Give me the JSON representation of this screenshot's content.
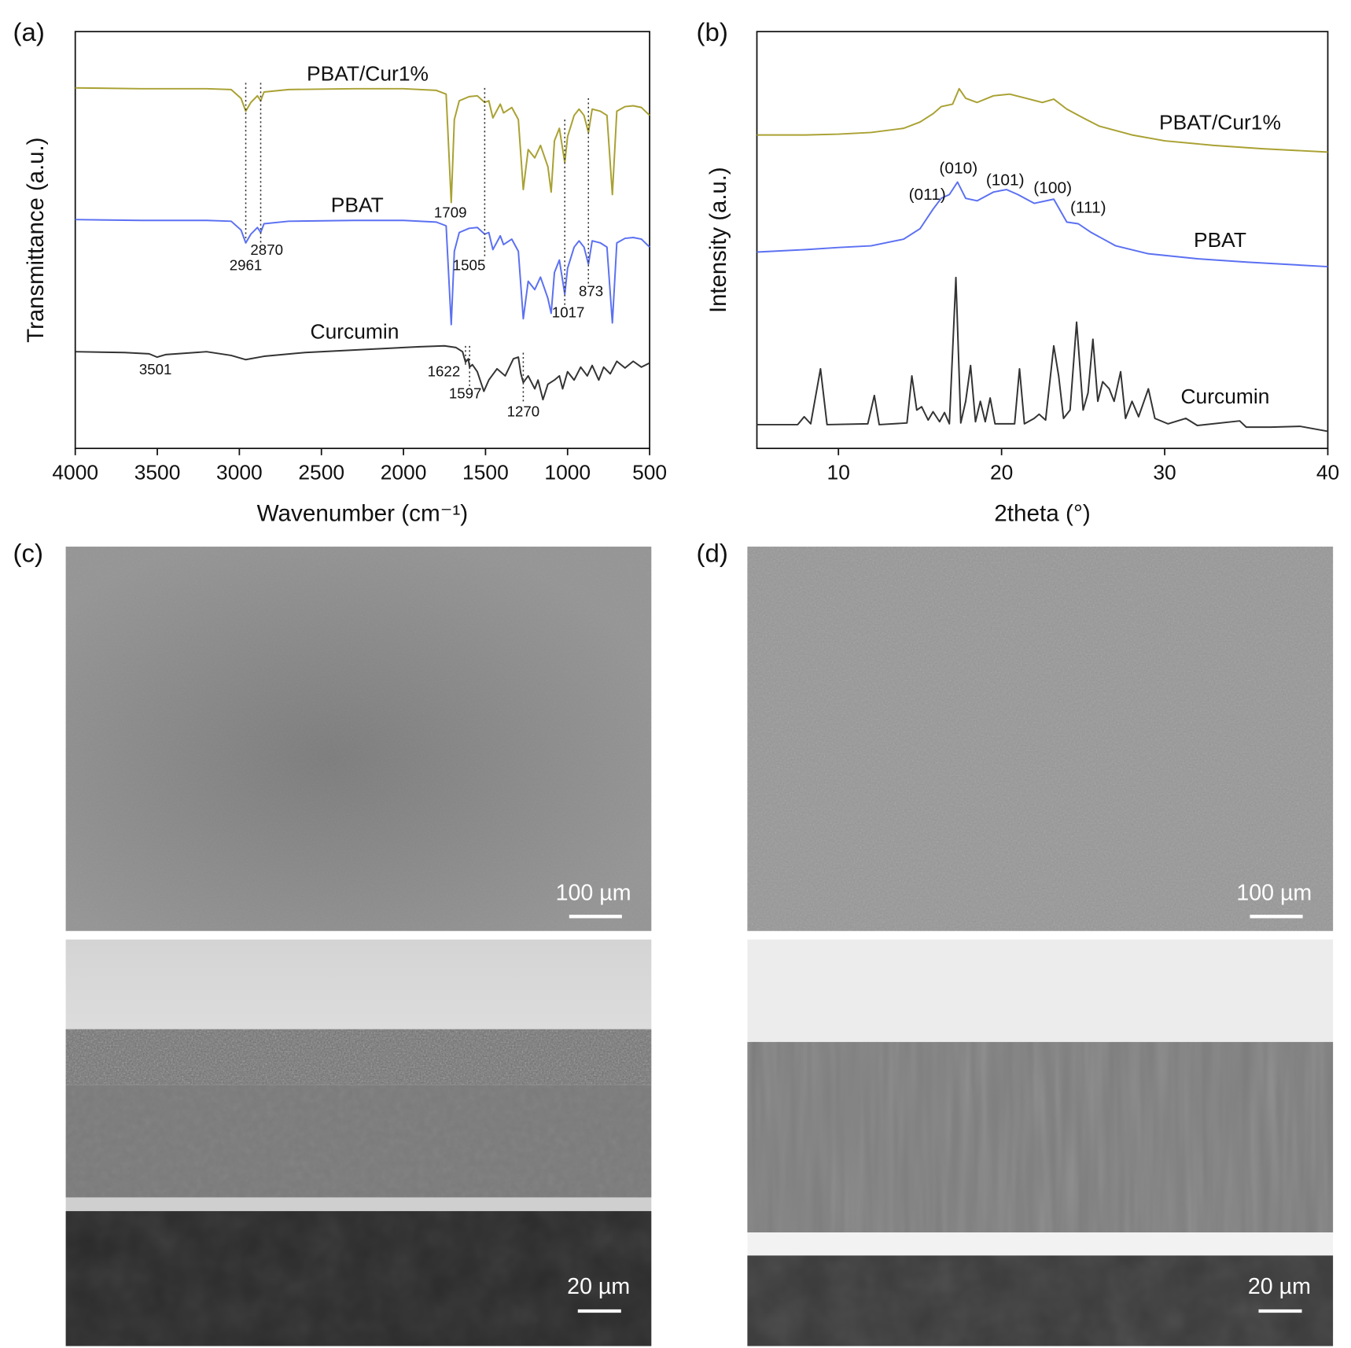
{
  "chart_data": [
    {
      "type": "line",
      "label": "(a)",
      "xlabel": "Wavenumber (cm⁻¹)",
      "ylabel": "Transmittance (a.u.)",
      "xlim": [
        4000,
        500
      ],
      "xticks": [
        4000,
        3500,
        3000,
        2500,
        2000,
        1500,
        1000,
        500
      ],
      "ylim": [
        0,
        100
      ],
      "series": [
        {
          "name": "PBAT/Cur1%",
          "color": "#a9a132",
          "x": [
            4000,
            3600,
            3200,
            3050,
            2990,
            2961,
            2930,
            2890,
            2870,
            2850,
            2700,
            2300,
            2000,
            1800,
            1740,
            1709,
            1690,
            1660,
            1600,
            1550,
            1505,
            1480,
            1455,
            1410,
            1390,
            1340,
            1300,
            1270,
            1240,
            1200,
            1165,
            1120,
            1100,
            1080,
            1050,
            1017,
            1000,
            960,
            930,
            900,
            873,
            850,
            800,
            760,
            727,
            700,
            650,
            600,
            550,
            500
          ],
          "values": [
            86.5,
            86.3,
            86.3,
            86.1,
            84.0,
            80.9,
            83.0,
            84.6,
            83.4,
            85.5,
            86.1,
            86.3,
            86.3,
            85.9,
            85.0,
            59.0,
            78.9,
            83.4,
            84.4,
            84.6,
            83.0,
            83.4,
            79.3,
            82.6,
            80.5,
            81.8,
            78.9,
            62.1,
            71.7,
            69.7,
            72.7,
            67.6,
            61.5,
            73.8,
            76.8,
            68.6,
            74.8,
            79.9,
            81.4,
            79.9,
            75.8,
            81.4,
            80.9,
            79.9,
            60.9,
            80.9,
            82.0,
            82.2,
            81.8,
            79.9
          ]
        },
        {
          "name": "PBAT",
          "color": "#5b70f2",
          "x": [
            4000,
            3600,
            3200,
            3050,
            2990,
            2961,
            2930,
            2890,
            2870,
            2850,
            2700,
            2300,
            2000,
            1800,
            1740,
            1709,
            1690,
            1660,
            1600,
            1550,
            1505,
            1480,
            1455,
            1410,
            1390,
            1340,
            1300,
            1270,
            1240,
            1200,
            1165,
            1120,
            1100,
            1080,
            1050,
            1017,
            1000,
            960,
            930,
            900,
            873,
            850,
            800,
            760,
            727,
            700,
            650,
            600,
            550,
            500
          ],
          "values": [
            54.9,
            54.7,
            54.7,
            54.5,
            52.4,
            49.3,
            51.4,
            53.0,
            51.8,
            53.9,
            54.5,
            54.7,
            54.7,
            54.3,
            53.4,
            29.7,
            47.3,
            51.8,
            52.8,
            53.0,
            51.4,
            51.8,
            47.7,
            51.0,
            48.9,
            50.2,
            47.3,
            31.1,
            40.1,
            38.1,
            41.1,
            36.0,
            32.4,
            42.2,
            45.2,
            37.0,
            43.2,
            48.3,
            49.8,
            48.3,
            44.2,
            49.8,
            49.3,
            48.3,
            30.1,
            49.3,
            50.4,
            50.6,
            50.2,
            48.3
          ]
        },
        {
          "name": "Curcumin",
          "color": "#333333",
          "x": [
            4000,
            3700,
            3550,
            3501,
            3450,
            3200,
            3050,
            2961,
            2850,
            2600,
            2200,
            1900,
            1750,
            1680,
            1640,
            1622,
            1605,
            1597,
            1580,
            1550,
            1510,
            1480,
            1430,
            1380,
            1330,
            1300,
            1285,
            1270,
            1240,
            1200,
            1180,
            1150,
            1120,
            1080,
            1050,
            1030,
            1000,
            960,
            920,
            880,
            850,
            810,
            780,
            740,
            700,
            650,
            600,
            550,
            500
          ],
          "values": [
            23.2,
            23.0,
            22.7,
            21.9,
            22.5,
            23.2,
            22.3,
            21.3,
            22.1,
            23.0,
            23.8,
            24.4,
            24.6,
            24.2,
            23.2,
            20.7,
            21.5,
            19.5,
            20.1,
            18.4,
            13.7,
            16.4,
            19.1,
            17.4,
            21.5,
            21.9,
            18.0,
            15.8,
            17.4,
            14.3,
            16.4,
            11.7,
            15.4,
            16.4,
            17.4,
            14.3,
            18.4,
            16.4,
            19.5,
            17.4,
            19.9,
            16.4,
            19.5,
            17.9,
            20.9,
            19.3,
            20.9,
            19.5,
            20.5
          ]
        }
      ],
      "annotations": [
        2961,
        2870,
        1709,
        1505,
        1017,
        873,
        3501,
        1622,
        1597,
        1270
      ]
    },
    {
      "type": "line",
      "label": "(b)",
      "xlabel": "2theta (°)",
      "ylabel": "Intensity (a.u.)",
      "xlim": [
        5,
        40
      ],
      "xticks": [
        10,
        20,
        30,
        40
      ],
      "ylim": [
        0,
        100
      ],
      "series": [
        {
          "name": "PBAT/Cur1%",
          "color": "#a9a132",
          "x": [
            5,
            8,
            10,
            12,
            14,
            15,
            15.8,
            16.3,
            17,
            17.4,
            17.8,
            18.5,
            19.5,
            20.5,
            21.5,
            22.5,
            23.2,
            24,
            25,
            26,
            28,
            30,
            33,
            36,
            40
          ],
          "values": [
            75.2,
            75.2,
            75.4,
            75.8,
            76.8,
            78.3,
            80.3,
            82.0,
            82.6,
            86.3,
            84.0,
            83.0,
            84.6,
            85.0,
            84.0,
            83.0,
            83.8,
            81.4,
            79.3,
            77.3,
            75.2,
            73.8,
            72.7,
            71.9,
            71.1
          ]
        },
        {
          "name": "PBAT",
          "color": "#5b70f2",
          "x": [
            5,
            8,
            10,
            12,
            14,
            15,
            15.8,
            16.3,
            16.8,
            17.3,
            17.8,
            18.5,
            19.5,
            20.3,
            21,
            22,
            23.2,
            24,
            24.7,
            25.5,
            27,
            29,
            32,
            35,
            40
          ],
          "values": [
            47.1,
            47.7,
            48.2,
            48.6,
            50.2,
            52.7,
            57.4,
            60.0,
            60.9,
            63.9,
            60.0,
            59.4,
            61.5,
            62.1,
            60.9,
            58.8,
            59.8,
            54.3,
            53.9,
            51.8,
            48.6,
            46.7,
            45.5,
            44.7,
            43.6
          ]
        },
        {
          "name": "Curcumin",
          "color": "#333333",
          "x": [
            5,
            7.5,
            7.9,
            8.3,
            8.9,
            9.3,
            11.8,
            12.2,
            12.5,
            14.2,
            14.5,
            14.8,
            15.1,
            15.5,
            15.8,
            16.2,
            16.5,
            16.8,
            17.2,
            17.5,
            17.8,
            18.1,
            18.4,
            18.7,
            19.0,
            19.3,
            19.6,
            20.8,
            21.1,
            21.4,
            22.0,
            22.3,
            22.7,
            23.2,
            23.5,
            23.8,
            24.2,
            24.6,
            25.0,
            25.3,
            25.6,
            25.9,
            26.2,
            26.6,
            26.9,
            27.3,
            27.6,
            28.0,
            28.4,
            29.0,
            29.4,
            30.2,
            31.3,
            32,
            34.6,
            35,
            36.5,
            38.3,
            40
          ],
          "values": [
            5.7,
            5.7,
            7.6,
            5.9,
            19.1,
            5.7,
            5.9,
            12.7,
            5.7,
            6.1,
            17.4,
            9.2,
            10.0,
            6.8,
            8.8,
            6.4,
            8.6,
            5.9,
            41.0,
            6.1,
            11.3,
            19.9,
            6.4,
            11.3,
            6.4,
            12.1,
            5.9,
            5.9,
            19.1,
            5.9,
            7.2,
            8.2,
            6.8,
            24.6,
            17.4,
            7.2,
            9.2,
            30.3,
            9.2,
            13.3,
            26.2,
            11.3,
            16.0,
            14.3,
            11.3,
            18.4,
            7.2,
            11.3,
            7.6,
            14.3,
            7.2,
            5.9,
            7.2,
            5.5,
            6.6,
            5.1,
            5.1,
            5.3,
            4.1
          ]
        }
      ],
      "annotations": [
        "(011)",
        "(010)",
        "(101)",
        "(100)",
        "(111)"
      ]
    }
  ],
  "images": [
    {
      "label": "(c)",
      "scale_bars": [
        "100 µm",
        "20 µm"
      ]
    },
    {
      "label": "(d)",
      "scale_bars": [
        "100 µm",
        "20 µm"
      ]
    }
  ]
}
